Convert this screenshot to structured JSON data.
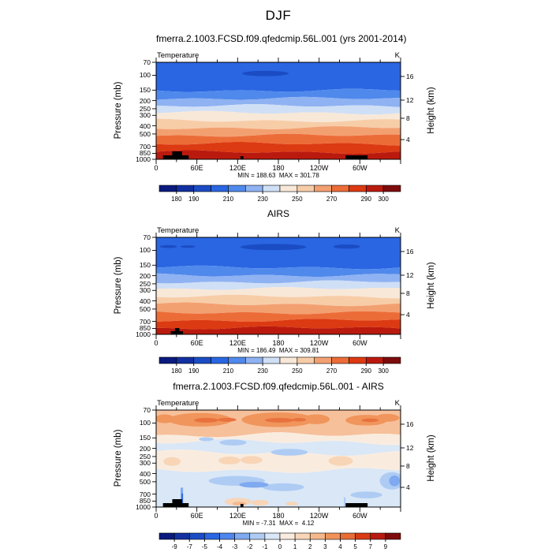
{
  "title": "DJF",
  "axes": {
    "pressure_label": "Pressure (mb)",
    "height_label": "Height (km)",
    "x_tick_labels": [
      "0",
      "60E",
      "120E",
      "180",
      "120W",
      "60W"
    ],
    "pressure_ticks": [
      {
        "label": "70",
        "f": 0.0
      },
      {
        "label": "100",
        "f": 0.134
      },
      {
        "label": "150",
        "f": 0.287
      },
      {
        "label": "200",
        "f": 0.395
      },
      {
        "label": "250",
        "f": 0.479
      },
      {
        "label": "300",
        "f": 0.547
      },
      {
        "label": "400",
        "f": 0.655
      },
      {
        "label": "500",
        "f": 0.739
      },
      {
        "label": "700",
        "f": 0.866
      },
      {
        "label": "850",
        "f": 0.939
      },
      {
        "label": "1000",
        "f": 1.0
      }
    ],
    "height_ticks": [
      {
        "label": "16",
        "f": 0.146
      },
      {
        "label": "12",
        "f": 0.39
      },
      {
        "label": "8",
        "f": 0.577
      },
      {
        "label": "4",
        "f": 0.797
      }
    ]
  },
  "colorbars": {
    "temp": {
      "segments": 14,
      "colors": [
        "#0a1a7e",
        "#12309f",
        "#1b4cc4",
        "#2a66e2",
        "#5089ec",
        "#8fb2f2",
        "#cfdff6",
        "#f8e8d8",
        "#f7cda8",
        "#f3a071",
        "#ec6c38",
        "#dc3a12",
        "#ba1a0e",
        "#7e0c0c"
      ],
      "tick_labels": [
        "180",
        "190",
        "210",
        "230",
        "250",
        "270",
        "290",
        "300"
      ],
      "tick_positions": [
        1,
        2,
        4,
        6,
        8,
        10,
        12,
        13
      ]
    },
    "diff": {
      "segments": 16,
      "colors": [
        "#0a1a7e",
        "#12309f",
        "#1b4cc4",
        "#2a66e2",
        "#4f86ec",
        "#7fa9f0",
        "#aecbf3",
        "#d9e7f7",
        "#f9ecdf",
        "#f8d6b7",
        "#f5b88c",
        "#f09358",
        "#e86c36",
        "#d93c14",
        "#b81a10",
        "#7e0c0c"
      ],
      "tick_labels": [
        "-9",
        "-7",
        "-5",
        "-4",
        "-3",
        "-2",
        "-1",
        "0",
        "1",
        "2",
        "3",
        "4",
        "5",
        "7",
        "9"
      ],
      "tick_positions": [
        1,
        2,
        3,
        4,
        5,
        6,
        7,
        8,
        9,
        10,
        11,
        12,
        13,
        14,
        15
      ]
    }
  },
  "chart_data": [
    {
      "type": "contour",
      "title": "fmerra.2.1003.FCSD.f09.qfedcmip.56L.001 (yrs 2001-2014)",
      "field_label": "Temperature",
      "units": "K",
      "stats": "MIN = 188.63  MAX = 301.78",
      "min": 188.63,
      "max": 301.78,
      "x_range_deg": [
        0,
        360
      ],
      "pressure_range_mb": [
        70,
        1000
      ],
      "levels": [
        180,
        190,
        200,
        210,
        220,
        230,
        240,
        250,
        260,
        270,
        280,
        290,
        300
      ],
      "palette": "temp",
      "bands": [
        {
          "color": "#2a66e2",
          "to": 0.29
        },
        {
          "color": "#5089ec",
          "to": 0.375
        },
        {
          "color": "#8fb2f2",
          "to": 0.45
        },
        {
          "color": "#cfdff6",
          "to": 0.52
        },
        {
          "color": "#f8e8d8",
          "to": 0.6
        },
        {
          "color": "#f7cda8",
          "to": 0.675
        },
        {
          "color": "#f3a071",
          "to": 0.755
        },
        {
          "color": "#ec6c38",
          "to": 0.84
        },
        {
          "color": "#dc3a12",
          "to": 0.925
        },
        {
          "color": "#ba1a0e",
          "to": 1.0
        }
      ],
      "shapes": [
        {
          "t": "e",
          "x": 0.447,
          "y": 0.115,
          "rx": 0.095,
          "ry": 0.028,
          "c": "#1b4cc4"
        }
      ],
      "terrain": [
        {
          "x": 0.028,
          "w": 0.105,
          "h": 5
        },
        {
          "x": 0.066,
          "w": 0.04,
          "h": 10
        },
        {
          "x": 0.345,
          "w": 0.012,
          "h": 4
        },
        {
          "x": 0.775,
          "w": 0.09,
          "h": 5
        }
      ]
    },
    {
      "type": "contour",
      "title": "AIRS",
      "field_label": "Temperature",
      "units": "K",
      "stats": "MIN = 186.49  MAX = 309.81",
      "min": 186.49,
      "max": 309.81,
      "x_range_deg": [
        0,
        360
      ],
      "pressure_range_mb": [
        70,
        1000
      ],
      "levels": [
        180,
        190,
        200,
        210,
        220,
        230,
        240,
        250,
        260,
        270,
        280,
        290,
        300
      ],
      "palette": "temp",
      "bands": [
        {
          "color": "#2a66e2",
          "to": 0.31
        },
        {
          "color": "#5089ec",
          "to": 0.39
        },
        {
          "color": "#8fb2f2",
          "to": 0.46
        },
        {
          "color": "#cfdff6",
          "to": 0.53
        },
        {
          "color": "#f8e8d8",
          "to": 0.61
        },
        {
          "color": "#f7cda8",
          "to": 0.69
        },
        {
          "color": "#f3a071",
          "to": 0.775
        },
        {
          "color": "#ec6c38",
          "to": 0.855
        },
        {
          "color": "#dc3a12",
          "to": 0.935
        },
        {
          "color": "#ba1a0e",
          "to": 1.0
        }
      ],
      "shapes": [
        {
          "t": "e",
          "x": 0.48,
          "y": 0.1,
          "rx": 0.135,
          "ry": 0.032,
          "c": "#1b4cc4"
        },
        {
          "t": "e",
          "x": 0.78,
          "y": 0.095,
          "rx": 0.055,
          "ry": 0.022,
          "c": "#1b4cc4"
        },
        {
          "t": "e",
          "x": 0.05,
          "y": 0.095,
          "rx": 0.035,
          "ry": 0.015,
          "c": "#1b4cc4"
        },
        {
          "t": "e",
          "x": 0.13,
          "y": 0.095,
          "rx": 0.03,
          "ry": 0.013,
          "c": "#1b4cc4"
        }
      ],
      "terrain": [
        {
          "x": 0.06,
          "w": 0.05,
          "h": 4
        },
        {
          "x": 0.077,
          "w": 0.018,
          "h": 8
        }
      ]
    },
    {
      "type": "contour-diff",
      "title": "fmerra.2.1003.FCSD.f09.qfedcmip.56L.001 - AIRS",
      "field_label": "Temperature",
      "units": "K",
      "stats": "MIN = -7.31  MAX =  4.12",
      "min": -7.31,
      "max": 4.12,
      "x_range_deg": [
        0,
        360
      ],
      "pressure_range_mb": [
        70,
        1000
      ],
      "levels": [
        -9,
        -7,
        -5,
        -4,
        -3,
        -2,
        -1,
        0,
        1,
        2,
        3,
        4,
        5,
        7,
        9
      ],
      "palette": "diff",
      "bands": [
        {
          "color": "#f6c09a",
          "to": 0.26
        },
        {
          "color": "#f9ecdf",
          "to": 0.33
        },
        {
          "color": "#d9e7f7",
          "to": 0.44
        },
        {
          "color": "#f9ecdf",
          "to": 0.62
        },
        {
          "color": "#d9e7f7",
          "to": 1.0
        }
      ],
      "shapes": [
        {
          "t": "e",
          "x": 0.035,
          "y": 0.09,
          "rx": 0.04,
          "ry": 0.045,
          "c": "#f0955c"
        },
        {
          "t": "e",
          "x": 0.18,
          "y": 0.1,
          "rx": 0.13,
          "ry": 0.07,
          "c": "#f0955c"
        },
        {
          "t": "e",
          "x": 0.5,
          "y": 0.1,
          "rx": 0.15,
          "ry": 0.075,
          "c": "#f0955c"
        },
        {
          "t": "e",
          "x": 0.655,
          "y": 0.095,
          "rx": 0.055,
          "ry": 0.05,
          "c": "#f0955c"
        },
        {
          "t": "e",
          "x": 0.86,
          "y": 0.105,
          "rx": 0.085,
          "ry": 0.055,
          "c": "#f0955c"
        },
        {
          "t": "e",
          "x": 0.945,
          "y": 0.08,
          "rx": 0.05,
          "ry": 0.04,
          "c": "#f0955c"
        },
        {
          "t": "e",
          "x": 0.205,
          "y": 0.105,
          "rx": 0.05,
          "ry": 0.024,
          "c": "#e9713e"
        },
        {
          "t": "e",
          "x": 0.29,
          "y": 0.1,
          "rx": 0.038,
          "ry": 0.02,
          "c": "#e9713e"
        },
        {
          "t": "e",
          "x": 0.505,
          "y": 0.105,
          "rx": 0.06,
          "ry": 0.024,
          "c": "#e9713e"
        },
        {
          "t": "e",
          "x": 0.585,
          "y": 0.1,
          "rx": 0.028,
          "ry": 0.018,
          "c": "#e9713e"
        },
        {
          "t": "e",
          "x": 0.875,
          "y": 0.105,
          "rx": 0.035,
          "ry": 0.018,
          "c": "#e9713e"
        },
        {
          "t": "e",
          "x": 0.205,
          "y": 0.3,
          "rx": 0.03,
          "ry": 0.02,
          "c": "#aecbf3"
        },
        {
          "t": "e",
          "x": 0.315,
          "y": 0.335,
          "rx": 0.055,
          "ry": 0.03,
          "c": "#aecbf3"
        },
        {
          "t": "e",
          "x": 0.545,
          "y": 0.435,
          "rx": 0.075,
          "ry": 0.035,
          "c": "#aecbf3"
        },
        {
          "t": "e",
          "x": 0.065,
          "y": 0.53,
          "rx": 0.035,
          "ry": 0.045,
          "c": "#f8d5b6"
        },
        {
          "t": "e",
          "x": 0.3,
          "y": 0.52,
          "rx": 0.045,
          "ry": 0.04,
          "c": "#f8d5b6"
        },
        {
          "t": "e",
          "x": 0.39,
          "y": 0.515,
          "rx": 0.045,
          "ry": 0.04,
          "c": "#f8d5b6"
        },
        {
          "t": "e",
          "x": 0.755,
          "y": 0.525,
          "rx": 0.05,
          "ry": 0.05,
          "c": "#f8d5b6"
        },
        {
          "t": "e",
          "x": 0.33,
          "y": 0.73,
          "rx": 0.115,
          "ry": 0.05,
          "c": "#aecbf3"
        },
        {
          "t": "e",
          "x": 0.52,
          "y": 0.795,
          "rx": 0.085,
          "ry": 0.04,
          "c": "#aecbf3"
        },
        {
          "t": "e",
          "x": 0.965,
          "y": 0.73,
          "rx": 0.05,
          "ry": 0.09,
          "c": "#aecbf3"
        },
        {
          "t": "e",
          "x": 0.86,
          "y": 0.875,
          "rx": 0.065,
          "ry": 0.035,
          "c": "#aecbf3"
        },
        {
          "t": "e",
          "x": 0.4,
          "y": 0.77,
          "rx": 0.06,
          "ry": 0.03,
          "c": "#7fa9f0"
        },
        {
          "t": "e",
          "x": 0.975,
          "y": 0.73,
          "rx": 0.022,
          "ry": 0.055,
          "c": "#7fa9f0"
        },
        {
          "t": "e",
          "x": 0.335,
          "y": 0.945,
          "rx": 0.055,
          "ry": 0.04,
          "c": "#f8d5b6"
        },
        {
          "t": "e",
          "x": 0.425,
          "y": 0.955,
          "rx": 0.035,
          "ry": 0.03,
          "c": "#f8d5b6"
        },
        {
          "t": "e",
          "x": 0.34,
          "y": 0.965,
          "rx": 0.028,
          "ry": 0.02,
          "c": "#f5b88c"
        },
        {
          "t": "e",
          "x": 0.555,
          "y": 0.965,
          "rx": 0.025,
          "ry": 0.02,
          "c": "#f8d5b6"
        },
        {
          "t": "r",
          "x": 0.1,
          "y": 0.8,
          "w": 0.01,
          "h": 0.2,
          "c": "#7fa9f0"
        },
        {
          "t": "r",
          "x": 0.104,
          "y": 0.86,
          "w": 0.006,
          "h": 0.14,
          "c": "#2a66e2"
        },
        {
          "t": "r",
          "x": 0.768,
          "y": 0.9,
          "w": 0.007,
          "h": 0.1,
          "c": "#aecbf3"
        }
      ],
      "terrain": [
        {
          "x": 0.028,
          "w": 0.105,
          "h": 5
        },
        {
          "x": 0.066,
          "w": 0.04,
          "h": 10
        },
        {
          "x": 0.345,
          "w": 0.012,
          "h": 4
        },
        {
          "x": 0.775,
          "w": 0.09,
          "h": 5
        }
      ]
    }
  ]
}
